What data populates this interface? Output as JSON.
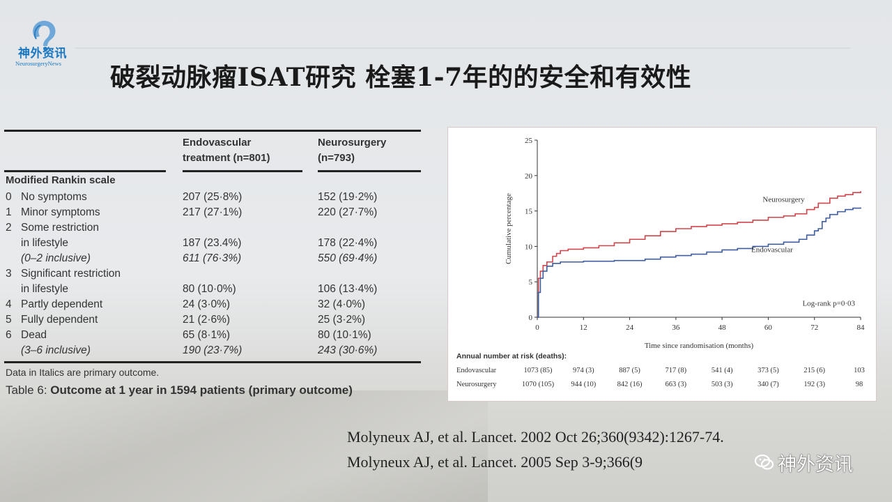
{
  "logo": {
    "name": "神外资讯",
    "sub": "NeurosurgeryNews"
  },
  "title": "破裂动脉瘤ISAT研究 栓塞1-7年的的安全和有效性",
  "table": {
    "columns": [
      "Endovascular treatment (n=801)",
      "Neurosurgery (n=793)"
    ],
    "col1_lines": [
      "Endovascular",
      "treatment (n=801)"
    ],
    "col2_lines": [
      "Neurosurgery",
      "(n=793)"
    ],
    "section": "Modified Rankin scale",
    "rows": [
      {
        "num": "0",
        "label": "No symptoms",
        "endo": "207 (25·8%)",
        "neuro": "152 (19·2%)"
      },
      {
        "num": "1",
        "label": "Minor symptoms",
        "endo": "217 (27·1%)",
        "neuro": "220 (27·7%)"
      },
      {
        "num": "2",
        "label": "Some restriction",
        "endo": "",
        "neuro": ""
      },
      {
        "num": "",
        "label": "in lifestyle",
        "endo": "187 (23.4%)",
        "neuro": "178 (22·4%)"
      },
      {
        "num": "",
        "label": "(0–2 inclusive)",
        "endo": "611 (76·3%)",
        "neuro": "550 (69·4%)",
        "italic": true
      },
      {
        "num": "3",
        "label": "Significant restriction",
        "endo": "",
        "neuro": ""
      },
      {
        "num": "",
        "label": "in lifestyle",
        "endo": "80 (10·0%)",
        "neuro": "106 (13·4%)"
      },
      {
        "num": "4",
        "label": "Partly dependent",
        "endo": "24 (3·0%)",
        "neuro": "32 (4·0%)"
      },
      {
        "num": "5",
        "label": "Fully dependent",
        "endo": "21 (2·6%)",
        "neuro": "25 (3·2%)"
      },
      {
        "num": "6",
        "label": "Dead",
        "endo": "65 (8·1%)",
        "neuro": "80 (10·1%)"
      },
      {
        "num": "",
        "label": "(3–6 inclusive)",
        "endo": "190 (23·7%)",
        "neuro": "243 (30·6%)",
        "italic": true
      }
    ],
    "note": "Data in Italics are primary outcome.",
    "caption_prefix": "Table 6: ",
    "caption_bold": "Outcome at 1 year in 1594 patients (primary outcome)"
  },
  "chart_data": {
    "type": "line",
    "xlabel": "Time since randomisation (months)",
    "ylabel": "Cumulative percentage",
    "xlim": [
      0,
      84
    ],
    "ylim": [
      0,
      25
    ],
    "xticks": [
      0,
      12,
      24,
      36,
      48,
      60,
      72,
      84
    ],
    "yticks": [
      0,
      5,
      10,
      15,
      20,
      25
    ],
    "annotation": "Log-rank p=0·03",
    "series": [
      {
        "name": "Neurosurgery",
        "color": "#d0454c",
        "points": [
          [
            0,
            0
          ],
          [
            0.3,
            5.5
          ],
          [
            0.8,
            6.5
          ],
          [
            1.5,
            7.3
          ],
          [
            2.5,
            7.8
          ],
          [
            4,
            8.6
          ],
          [
            5,
            9.0
          ],
          [
            6,
            9.4
          ],
          [
            8,
            9.6
          ],
          [
            12,
            9.8
          ],
          [
            16,
            10.1
          ],
          [
            20,
            10.5
          ],
          [
            24,
            11.0
          ],
          [
            28,
            11.5
          ],
          [
            32,
            12.1
          ],
          [
            36,
            12.5
          ],
          [
            40,
            12.8
          ],
          [
            44,
            13.0
          ],
          [
            48,
            13.2
          ],
          [
            52,
            13.4
          ],
          [
            56,
            13.7
          ],
          [
            60,
            14.1
          ],
          [
            64,
            14.3
          ],
          [
            67,
            14.6
          ],
          [
            70,
            15.2
          ],
          [
            72,
            15.5
          ],
          [
            73,
            16.1
          ],
          [
            76,
            16.8
          ],
          [
            78,
            17.1
          ],
          [
            80,
            17.3
          ],
          [
            82,
            17.6
          ],
          [
            84,
            17.8
          ]
        ]
      },
      {
        "name": "Endovascular",
        "color": "#3f5c9e",
        "points": [
          [
            0,
            0
          ],
          [
            0.3,
            3.5
          ],
          [
            0.8,
            5.5
          ],
          [
            1.5,
            6.5
          ],
          [
            2.5,
            7.2
          ],
          [
            4,
            7.6
          ],
          [
            6,
            7.8
          ],
          [
            12,
            7.9
          ],
          [
            20,
            8.0
          ],
          [
            28,
            8.2
          ],
          [
            32,
            8.5
          ],
          [
            36,
            8.7
          ],
          [
            40,
            8.9
          ],
          [
            44,
            9.2
          ],
          [
            48,
            9.5
          ],
          [
            52,
            9.7
          ],
          [
            56,
            10.0
          ],
          [
            60,
            10.3
          ],
          [
            64,
            10.6
          ],
          [
            68,
            11.0
          ],
          [
            70,
            11.6
          ],
          [
            72,
            12.2
          ],
          [
            73,
            12.5
          ],
          [
            74,
            13.5
          ],
          [
            75,
            14.0
          ],
          [
            76,
            14.5
          ],
          [
            78,
            14.9
          ],
          [
            80,
            15.2
          ],
          [
            82,
            15.4
          ],
          [
            84,
            15.5
          ]
        ]
      }
    ],
    "risk_table": {
      "header": "Annual number at risk (deaths):",
      "rows": [
        {
          "name": "Endovascular",
          "cells": [
            "1073 (85)",
            "974 (3)",
            "887 (5)",
            "717 (8)",
            "541 (4)",
            "373 (5)",
            "215 (6)",
            "103"
          ]
        },
        {
          "name": "Neurosurgery",
          "cells": [
            "1070 (105)",
            "944 (10)",
            "842 (16)",
            "663 (3)",
            "503 (3)",
            "340 (7)",
            "192 (3)",
            "98"
          ]
        }
      ]
    }
  },
  "references": [
    "Molyneux AJ, et al. Lancet. 2002 Oct 26;360(9342):1267-74.",
    "Molyneux AJ, et al. Lancet. 2005 Sep 3-9;366(9"
  ],
  "watermark": "神外资讯"
}
